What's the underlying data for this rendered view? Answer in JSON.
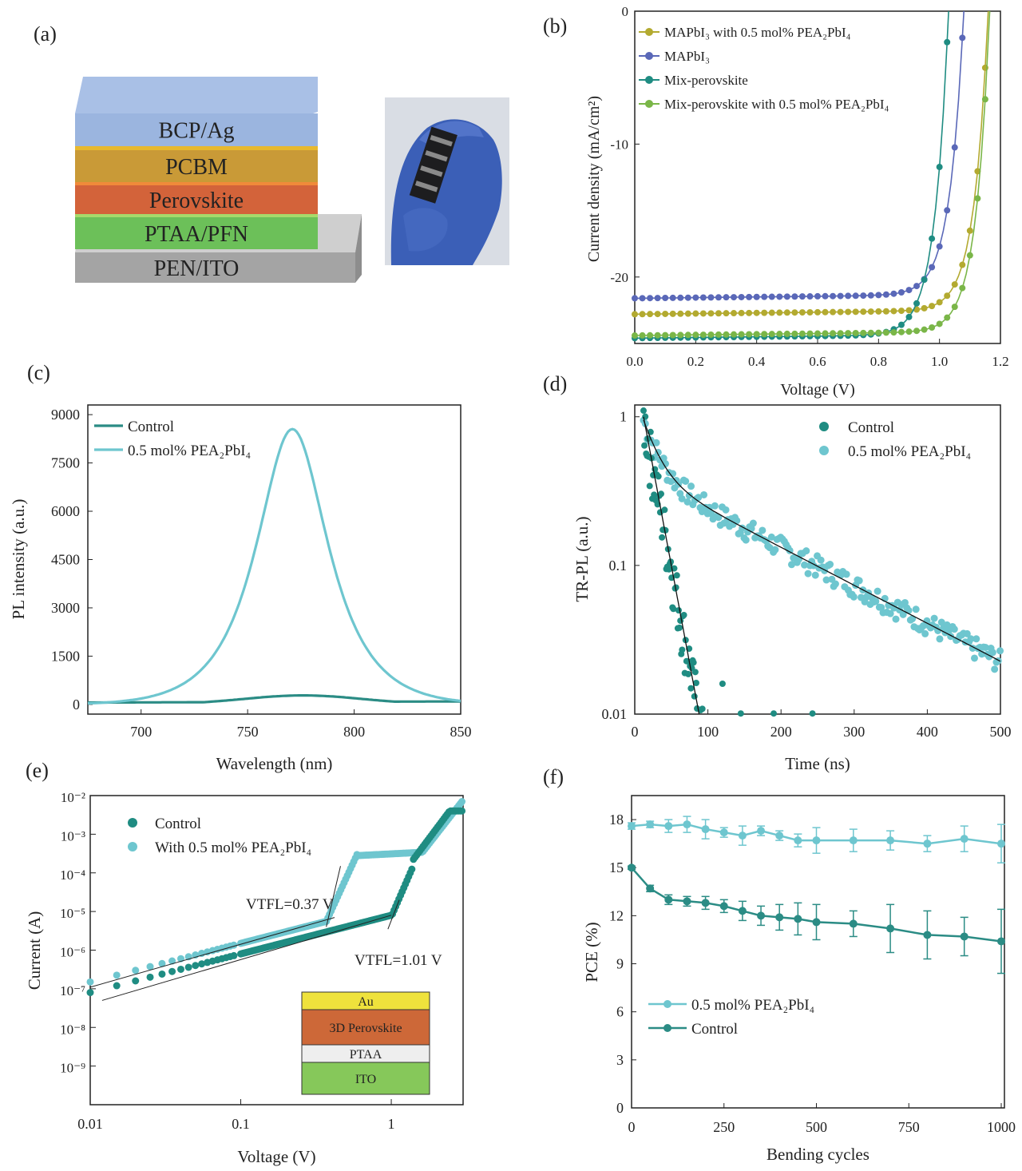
{
  "figure": {
    "panel_letters": [
      "(a)",
      "(b)",
      "(c)",
      "(d)",
      "(e)",
      "(f)"
    ],
    "device_stack_layers": [
      {
        "label": "BCP/Ag",
        "color": "#9bb5df"
      },
      {
        "label": "PCBM",
        "color": "#c99a37"
      },
      {
        "label": "Perovskite",
        "color": "#d3633a"
      },
      {
        "label": "PTAA/PFN",
        "color": "#6cc059"
      },
      {
        "label": "PEN/ITO",
        "color": "#a4a4a4"
      }
    ],
    "e_inset_layers": [
      {
        "label": "Au",
        "color": "#efe23c"
      },
      {
        "label": "3D Perovskite",
        "color": "#cd6838"
      },
      {
        "label": "PTAA",
        "color": "#eeeeee"
      },
      {
        "label": "ITO",
        "color": "#86c85a"
      }
    ]
  },
  "chart_data": [
    {
      "panel": "(b)",
      "type": "line",
      "xlabel": "Voltage (V)",
      "ylabel": "Current density (mA/cm²)",
      "xlim": [
        0,
        1.2
      ],
      "ylim": [
        -25,
        0
      ],
      "xticks": [
        "0.0",
        "0.2",
        "0.4",
        "0.6",
        "0.8",
        "1.0",
        "1.2"
      ],
      "yticks": [
        "0",
        "-10",
        "-20"
      ],
      "legend_position": "top-left",
      "series": [
        {
          "name": "MAPbI₃ with 0.5 mol% PEA₂PbI₄",
          "color": "#b3aa30",
          "jsc": -22.8,
          "voc": 1.16
        },
        {
          "name": "MAPbI₃",
          "color": "#5a68b8",
          "jsc": -21.6,
          "voc": 1.08
        },
        {
          "name": "Mix-perovskite",
          "color": "#1f8c82",
          "jsc": -24.6,
          "voc": 1.03
        },
        {
          "name": "Mix-perovskite with 0.5 mol% PEA₂PbI₄",
          "color": "#7ab648",
          "jsc": -24.4,
          "voc": 1.165
        }
      ]
    },
    {
      "panel": "(c)",
      "type": "line",
      "xlabel": "Wavelength (nm)",
      "ylabel": "PL intensity (a.u.)",
      "xlim": [
        675,
        850
      ],
      "ylim": [
        -300,
        9300
      ],
      "xticks": [
        "700",
        "750",
        "800",
        "850"
      ],
      "yticks": [
        "0",
        "1500",
        "3000",
        "4500",
        "6000",
        "7500",
        "9000"
      ],
      "legend_position": "top-left",
      "series": [
        {
          "name": "Control",
          "color": "#2b8c85",
          "peak_nm": 776,
          "peak_value": 280
        },
        {
          "name": "0.5 mol% PEA₂PbI₄",
          "color": "#6ec6cf",
          "peak_nm": 771,
          "peak_value": 8550
        }
      ]
    },
    {
      "panel": "(d)",
      "type": "scatter",
      "xlabel": "Time (ns)",
      "ylabel": "TR-PL (a.u.)",
      "xlim": [
        0,
        500
      ],
      "ylim": [
        0.01,
        1.2
      ],
      "yscale": "log",
      "xticks": [
        "0",
        "100",
        "200",
        "300",
        "400",
        "500"
      ],
      "yticks": [
        "0.01",
        "0.1",
        "1"
      ],
      "legend_position": "top-right",
      "series": [
        {
          "name": "Control",
          "color": "#1f8c82"
        },
        {
          "name": "0.5 mol% PEA₂PbI₄",
          "color": "#6ec6cf"
        }
      ]
    },
    {
      "panel": "(e)",
      "type": "scatter",
      "xlabel": "Voltage (V)",
      "ylabel": "Current (A)",
      "xscale": "log",
      "yscale": "log",
      "xlim": [
        0.01,
        3
      ],
      "ylim": [
        1e-10,
        0.01
      ],
      "xticks": [
        "0.01",
        "0.1",
        "1"
      ],
      "yticks": [
        "10⁻⁹",
        "10⁻⁸",
        "10⁻⁷",
        "10⁻⁶",
        "10⁻⁵",
        "10⁻⁴",
        "10⁻³",
        "10⁻²"
      ],
      "legend_position": "top-left",
      "annotations": [
        "VTFL=0.37 V",
        "VTFL=1.01 V"
      ],
      "series": [
        {
          "name": "Control",
          "color": "#1f8c82",
          "vtfl": 1.01
        },
        {
          "name": "With 0.5 mol% PEA₂PbI₄",
          "color": "#6ec6cf",
          "vtfl": 0.37
        }
      ]
    },
    {
      "panel": "(f)",
      "type": "line",
      "xlabel": "Bending cycles",
      "ylabel": "PCE (%)",
      "xlim": [
        0,
        1000
      ],
      "ylim": [
        0,
        19.5
      ],
      "xticks": [
        "0",
        "250",
        "500",
        "750",
        "1000"
      ],
      "yticks": [
        "0",
        "3",
        "6",
        "9",
        "12",
        "15",
        "18"
      ],
      "legend_position": "bottom-left",
      "x": [
        0,
        50,
        100,
        150,
        200,
        250,
        300,
        350,
        400,
        450,
        500,
        600,
        700,
        800,
        900,
        1000
      ],
      "series": [
        {
          "name": "0.5 mol% PEA₂PbI₄",
          "color": "#6ec6cf",
          "values": [
            17.6,
            17.7,
            17.6,
            17.7,
            17.4,
            17.2,
            17.0,
            17.3,
            17.0,
            16.7,
            16.7,
            16.7,
            16.7,
            16.5,
            16.8,
            16.5
          ],
          "errors": [
            0.2,
            0.2,
            0.4,
            0.5,
            0.6,
            0.3,
            0.6,
            0.3,
            0.3,
            0.4,
            0.8,
            0.7,
            0.6,
            0.5,
            0.8,
            1.2
          ]
        },
        {
          "name": "Control",
          "color": "#2b8c85",
          "values": [
            15.0,
            13.7,
            13.0,
            12.9,
            12.8,
            12.6,
            12.3,
            12.0,
            11.9,
            11.8,
            11.6,
            11.5,
            11.2,
            10.8,
            10.7,
            10.4
          ],
          "errors": [
            0.1,
            0.2,
            0.3,
            0.3,
            0.4,
            0.4,
            0.6,
            0.6,
            0.8,
            1.0,
            1.1,
            0.8,
            1.5,
            1.5,
            1.2,
            2.0
          ]
        }
      ]
    }
  ]
}
